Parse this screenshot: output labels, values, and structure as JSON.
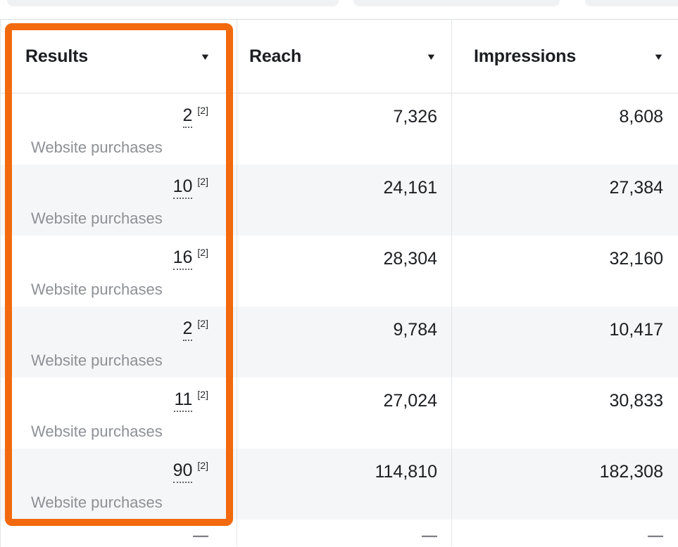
{
  "annotation": {
    "highlight_color": "#F2690E"
  },
  "header": {
    "columns": [
      {
        "label": "Results"
      },
      {
        "label": "Reach"
      },
      {
        "label": "Impressions"
      }
    ],
    "sort_icon": "▼"
  },
  "rows": [
    {
      "result": "2",
      "result_ref": "[2]",
      "result_label": "Website purchases",
      "reach": "7,326",
      "impressions": "8,608"
    },
    {
      "result": "10",
      "result_ref": "[2]",
      "result_label": "Website purchases",
      "reach": "24,161",
      "impressions": "27,384"
    },
    {
      "result": "16",
      "result_ref": "[2]",
      "result_label": "Website purchases",
      "reach": "28,304",
      "impressions": "32,160"
    },
    {
      "result": "2",
      "result_ref": "[2]",
      "result_label": "Website purchases",
      "reach": "9,784",
      "impressions": "10,417"
    },
    {
      "result": "11",
      "result_ref": "[2]",
      "result_label": "Website purchases",
      "reach": "27,024",
      "impressions": "30,833"
    },
    {
      "result": "90",
      "result_ref": "[2]",
      "result_label": "Website purchases",
      "reach": "114,810",
      "impressions": "182,308"
    }
  ],
  "partial_row": {
    "results": "—",
    "reach": "—",
    "impressions": "—"
  }
}
